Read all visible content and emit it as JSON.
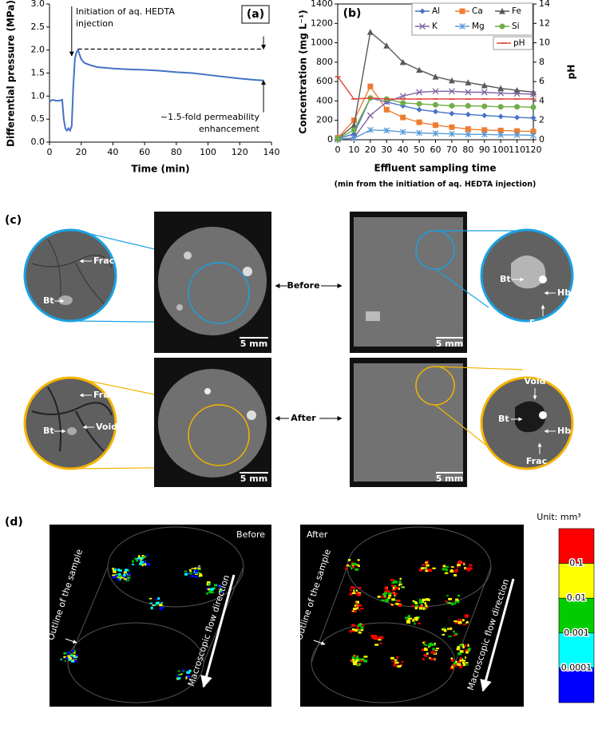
{
  "chart_data": [
    {
      "type": "line",
      "panel_label": "(a)",
      "xlabel": "Time (min)",
      "ylabel": "Differential pressure (MPa)",
      "annotation_injection": [
        "Initiation of aq. HEDTA",
        "injection"
      ],
      "annotation_enhancement": [
        "~1.5-fold permeability",
        "enhancement"
      ],
      "reference_line": 2.02,
      "x": [
        0,
        2,
        4,
        6,
        8,
        9,
        10,
        11,
        12,
        13,
        14,
        15,
        16,
        17,
        18,
        19,
        20,
        22,
        25,
        30,
        40,
        50,
        60,
        70,
        80,
        90,
        100,
        110,
        120,
        130,
        135
      ],
      "series": [
        {
          "color": "#4472c4",
          "values": [
            0.88,
            0.92,
            0.9,
            0.9,
            0.92,
            0.5,
            0.3,
            0.25,
            0.3,
            0.25,
            0.35,
            1.2,
            1.8,
            1.95,
            2.0,
            1.9,
            1.8,
            1.72,
            1.68,
            1.63,
            1.6,
            1.58,
            1.57,
            1.55,
            1.52,
            1.5,
            1.46,
            1.42,
            1.38,
            1.35,
            1.34
          ]
        }
      ],
      "xlim": [
        0,
        140
      ],
      "xticks": [
        0,
        20,
        40,
        60,
        80,
        100,
        120,
        140
      ],
      "ylim": [
        0,
        3
      ],
      "yticks": [
        {
          "value": 0,
          "label": "0.0"
        },
        0.5,
        {
          "value": 1,
          "label": "1.0"
        },
        1.5,
        {
          "value": 2,
          "label": "2.0"
        },
        2.5,
        {
          "value": 3,
          "label": "3.0"
        }
      ],
      "grid": false
    },
    {
      "type": "line",
      "panel_label": "(b)",
      "xlabel": "Effluent sampling time",
      "xlabel_note": "(min from the initiation of aq. HEDTA injection)",
      "ylabel": "Concentration (mg L⁻¹)",
      "y2label": "pH",
      "x": [
        0,
        10,
        20,
        30,
        40,
        50,
        60,
        70,
        80,
        90,
        100,
        110,
        120
      ],
      "series": [
        {
          "name": "Al",
          "color": "#4472c4",
          "marker": "diamond",
          "values": [
            10,
            60,
            430,
            390,
            350,
            310,
            290,
            270,
            260,
            250,
            240,
            230,
            225
          ]
        },
        {
          "name": "Ca",
          "color": "#ed7d31",
          "marker": "square",
          "values": [
            20,
            200,
            550,
            310,
            230,
            180,
            150,
            130,
            110,
            100,
            95,
            90,
            85
          ]
        },
        {
          "name": "Fe",
          "color": "#595959",
          "marker": "triangle",
          "values": [
            10,
            150,
            1110,
            970,
            800,
            720,
            650,
            610,
            590,
            560,
            530,
            510,
            490
          ]
        },
        {
          "name": "K",
          "color": "#8064a2",
          "marker": "x",
          "values": [
            5,
            20,
            250,
            390,
            450,
            490,
            500,
            500,
            490,
            490,
            480,
            475,
            470
          ]
        },
        {
          "name": "Mg",
          "color": "#5b9bd5",
          "marker": "star",
          "values": [
            5,
            15,
            100,
            95,
            80,
            70,
            65,
            60,
            55,
            55,
            50,
            50,
            45
          ]
        },
        {
          "name": "Si",
          "color": "#70ad47",
          "marker": "circle",
          "values": [
            10,
            100,
            430,
            420,
            380,
            370,
            360,
            350,
            350,
            345,
            340,
            340,
            335
          ]
        },
        {
          "name": "pH",
          "color": "#e0453a",
          "marker": "dash",
          "axis": "y2",
          "values": [
            6.5,
            4.2,
            4.3,
            4.2,
            4.2,
            4.2,
            4.2,
            4.2,
            4.2,
            4.2,
            4.2,
            4.2,
            4.2
          ]
        }
      ],
      "xlim": [
        0,
        120
      ],
      "xticks": [
        0,
        10,
        20,
        30,
        40,
        50,
        60,
        70,
        80,
        90,
        100,
        110,
        120
      ],
      "ylim": [
        0,
        1400
      ],
      "yticks": [
        0,
        200,
        400,
        600,
        800,
        1000,
        1200,
        1400
      ],
      "y2lim": [
        0,
        14
      ],
      "y2ticks": [
        0,
        2,
        4,
        6,
        8,
        10,
        12,
        14
      ],
      "legend": "top-right",
      "grid": false
    }
  ],
  "panel_c": {
    "label": "(c)",
    "before": "Before",
    "after": "After",
    "scale_bar": "5 mm",
    "before_left": [
      "Frac",
      "Bt"
    ],
    "before_right": [
      "Bt",
      "Hb",
      "Frac"
    ],
    "after_left": [
      "Frac",
      "Bt",
      "Void"
    ],
    "after_right": [
      "Void",
      "Bt",
      "Hb",
      "Frac"
    ]
  },
  "panel_d": {
    "label": "(d)",
    "before": "Before",
    "after": "After",
    "outline": "Outline of the sample",
    "flow": "Macroscopic flow direction",
    "unit": "Unit: mm³",
    "colorbar_labels": [
      "0.1",
      "0.01",
      "0.001",
      "0.0001"
    ],
    "colorbar_colors": [
      "#ff0000",
      "#ffff00",
      "#00cc00",
      "#00ffff",
      "#0000ff"
    ]
  }
}
